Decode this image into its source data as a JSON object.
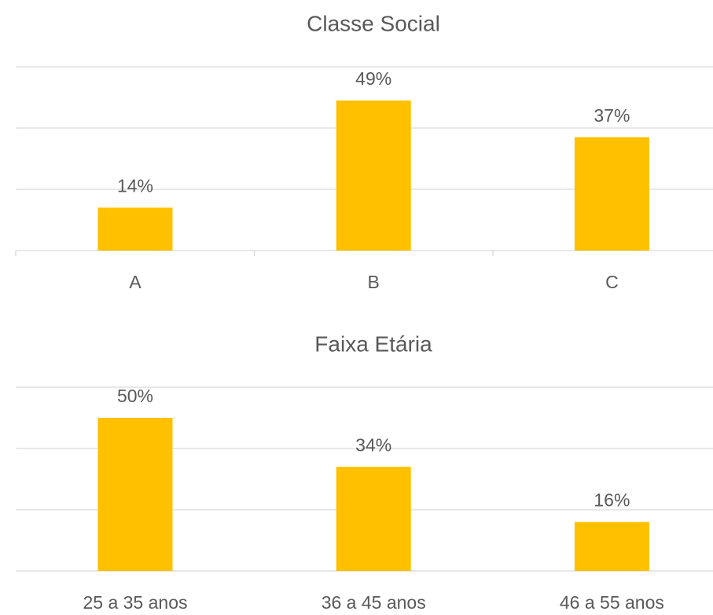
{
  "chart_data": [
    {
      "type": "bar",
      "title": "Classe Social",
      "categories": [
        "A",
        "B",
        "C"
      ],
      "values": [
        14,
        49,
        37
      ],
      "value_labels": [
        "14%",
        "49%",
        "37%"
      ],
      "color": "#ffc000",
      "ylim": [
        0,
        60
      ],
      "yticks": [
        0,
        20,
        40,
        60
      ],
      "grid": true
    },
    {
      "type": "bar",
      "title": "Faixa Etária",
      "categories": [
        "25 a 35 anos",
        "36 a 45 anos",
        "46 a 55 anos"
      ],
      "values": [
        50,
        34,
        16
      ],
      "value_labels": [
        "50%",
        "34%",
        "16%"
      ],
      "color": "#ffc000",
      "ylim": [
        0,
        60
      ],
      "yticks": [
        0,
        20,
        40,
        60
      ],
      "grid": true
    }
  ]
}
